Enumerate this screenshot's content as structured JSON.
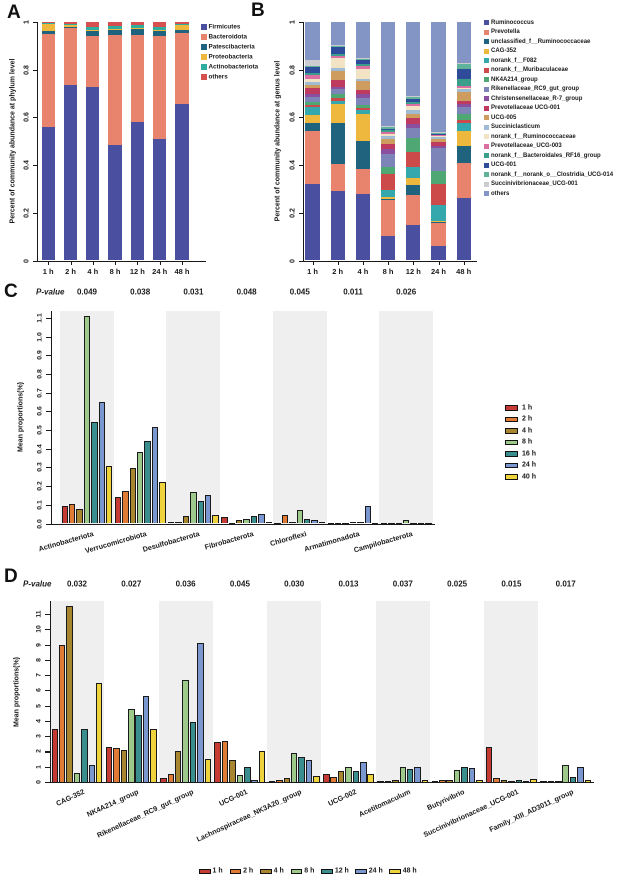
{
  "figure": {
    "panel_a_letter": "A",
    "panel_b_letter": "B",
    "panel_c_letter": "C",
    "panel_d_letter": "D"
  },
  "chart_data": [
    {
      "id": "A",
      "type": "bar",
      "subtype": "stacked-vertical",
      "panel_label": "A",
      "ylabel": "Percent of community abundance at phylum level",
      "categories": [
        "1 h",
        "2 h",
        "4 h",
        "8 h",
        "12 h",
        "24 h",
        "48 h"
      ],
      "ytick_labels": [
        "0",
        "0.2",
        "0.4",
        "0.6",
        "0.8",
        "1"
      ],
      "ytick_values": [
        0,
        0.2,
        0.4,
        0.6,
        0.8,
        1
      ],
      "ylim": [
        0,
        1
      ],
      "legend_position": "right",
      "series": [
        {
          "name": "Firmicutes",
          "color": "#4b4f9f",
          "values": [
            0.56,
            0.735,
            0.725,
            0.485,
            0.58,
            0.51,
            0.655
          ]
        },
        {
          "name": "Bacteroidota",
          "color": "#e8846e",
          "values": [
            0.39,
            0.24,
            0.215,
            0.458,
            0.365,
            0.43,
            0.3
          ]
        },
        {
          "name": "Patescibacteria",
          "color": "#20637e",
          "values": [
            0.012,
            0.005,
            0.022,
            0.022,
            0.025,
            0.022,
            0.012
          ]
        },
        {
          "name": "Proteobacteria",
          "color": "#eeb73e",
          "values": [
            0.028,
            0.007,
            0.003,
            0.003,
            0.003,
            0.003,
            0.02
          ]
        },
        {
          "name": "Actinobacteriota",
          "color": "#2fae9f",
          "values": [
            0.003,
            0.005,
            0.015,
            0.015,
            0.012,
            0.015,
            0.005
          ]
        },
        {
          "name": "others",
          "color": "#d5504e",
          "values": [
            0.007,
            0.008,
            0.02,
            0.017,
            0.015,
            0.02,
            0.008
          ]
        }
      ]
    },
    {
      "id": "B",
      "type": "bar",
      "subtype": "stacked-vertical",
      "panel_label": "B",
      "ylabel": "Percent of community abundance at genus level",
      "categories": [
        "1 h",
        "2 h",
        "4 h",
        "8 h",
        "12 h",
        "24 h",
        "48 h"
      ],
      "ytick_labels": [
        "0",
        "0.2",
        "0.4",
        "0.6",
        "0.8",
        "1"
      ],
      "ytick_values": [
        0,
        0.2,
        0.4,
        0.6,
        0.8,
        1
      ],
      "ylim": [
        0,
        1
      ],
      "legend_position": "right",
      "series": [
        {
          "name": "Ruminococcus",
          "color": "#4b4f9f",
          "values": [
            0.32,
            0.29,
            0.28,
            0.102,
            0.15,
            0.062,
            0.26
          ]
        },
        {
          "name": "Prevotella",
          "color": "#e8846e",
          "values": [
            0.225,
            0.115,
            0.105,
            0.15,
            0.125,
            0.095,
            0.15
          ]
        },
        {
          "name": "unclassified_f__Ruminococcaceae",
          "color": "#20637e",
          "values": [
            0.03,
            0.17,
            0.115,
            0.005,
            0.04,
            0.004,
            0.07
          ]
        },
        {
          "name": "CAG-352",
          "color": "#eeb73e",
          "values": [
            0.037,
            0.08,
            0.115,
            0.008,
            0.03,
            0.006,
            0.065
          ]
        },
        {
          "name": "norank_f__F082",
          "color": "#35a8ad",
          "values": [
            0.03,
            0.015,
            0.015,
            0.03,
            0.048,
            0.065,
            0.03
          ]
        },
        {
          "name": "norank_f__Muribaculaceae",
          "color": "#cc4a4a",
          "values": [
            0.008,
            0.012,
            0.008,
            0.068,
            0.061,
            0.09,
            0.015
          ]
        },
        {
          "name": "NK4A214_group",
          "color": "#4fa873",
          "values": [
            0.014,
            0.015,
            0.015,
            0.03,
            0.061,
            0.055,
            0.025
          ]
        },
        {
          "name": "Rikenellaceae_RC9_gut_group",
          "color": "#7d84b8",
          "values": [
            0.023,
            0.02,
            0.03,
            0.055,
            0.041,
            0.095,
            0.03
          ]
        },
        {
          "name": "Christensenellaceae_R-7_group",
          "color": "#8a4f9e",
          "values": [
            0.01,
            0.01,
            0.015,
            0.018,
            0.015,
            0.008,
            0.01
          ]
        },
        {
          "name": "Prevotellaceae UCG-001",
          "color": "#be3a5f",
          "values": [
            0.028,
            0.028,
            0.015,
            0.022,
            0.025,
            0.018,
            0.012
          ]
        },
        {
          "name": "UCG-005",
          "color": "#ce9c5e",
          "values": [
            0.01,
            0.04,
            0.04,
            0.02,
            0.02,
            0.012,
            0.04
          ]
        },
        {
          "name": "Succiniclasticum",
          "color": "#9fbcd4",
          "values": [
            0.012,
            0.012,
            0.01,
            0.015,
            0.015,
            0.008,
            0.01
          ]
        },
        {
          "name": "norank_f__Ruminococcaceae",
          "color": "#f2e3c4",
          "values": [
            0.015,
            0.04,
            0.04,
            0.006,
            0.015,
            0.004,
            0.008
          ]
        },
        {
          "name": "Prevotellaceae_UCG-003",
          "color": "#dc6fa2",
          "values": [
            0.015,
            0.01,
            0.012,
            0.01,
            0.01,
            0.004,
            0.008
          ]
        },
        {
          "name": "norank_f__Bacteroidales_RF16_group",
          "color": "#3a9e8a",
          "values": [
            0.01,
            0.01,
            0.01,
            0.008,
            0.01,
            0.004,
            0.03
          ]
        },
        {
          "name": "UCG-001",
          "color": "#2f4c9b",
          "values": [
            0.025,
            0.028,
            0.015,
            0.005,
            0.01,
            0.002,
            0.04
          ]
        },
        {
          "name": "norank_f__norank_o__Clostridia_UCG-014",
          "color": "#5fb39a",
          "values": [
            0.005,
            0.005,
            0.005,
            0.008,
            0.01,
            0.003,
            0.02
          ]
        },
        {
          "name": "Succinivibrionaceae_UCG-001",
          "color": "#ccccd0",
          "values": [
            0.022,
            0.005,
            0.005,
            0.005,
            0.005,
            0.005,
            0.005
          ]
        },
        {
          "name": "others",
          "color": "#8395c4",
          "values": [
            0.161,
            0.095,
            0.15,
            0.435,
            0.309,
            0.46,
            0.172
          ]
        }
      ]
    },
    {
      "id": "C",
      "type": "bar",
      "subtype": "grouped-vertical",
      "panel_label": "C",
      "ylabel": "Mean proportions(%)",
      "pvalue_label": "P-value",
      "ytick_labels": [
        "0.0",
        "0.1",
        "0.2",
        "0.3",
        "0.4",
        "0.5",
        "0.6",
        "0.7",
        "0.8",
        "0.9",
        "1.0",
        "1.1"
      ],
      "ytick_values": [
        0,
        0.1,
        0.2,
        0.3,
        0.4,
        0.5,
        0.6,
        0.7,
        0.8,
        0.9,
        1.0,
        1.1
      ],
      "ylim": [
        0,
        1.15
      ],
      "band_color": "#efefef",
      "legend_position": "right",
      "series_labels": [
        "1 h",
        "2 h",
        "4 h",
        "8 h",
        "16 h",
        "24 h",
        "40 h"
      ],
      "series_colors": [
        "#c53a32",
        "#e07b35",
        "#a8862f",
        "#9dc98a",
        "#3a8e8e",
        "#7b97d0",
        "#efd33d"
      ],
      "groups": [
        {
          "name": "Actinobacteriota",
          "pvalue": "0.049",
          "values": [
            0.095,
            0.105,
            0.08,
            1.11,
            0.545,
            0.65,
            0.305
          ]
        },
        {
          "name": "Verrucomicrobiota",
          "pvalue": "0.038",
          "values": [
            0.14,
            0.175,
            0.295,
            0.38,
            0.44,
            0.515,
            0.22
          ]
        },
        {
          "name": "Desulfobacterota",
          "pvalue": "0.031",
          "values": [
            0.01,
            0.01,
            0.04,
            0.17,
            0.12,
            0.155,
            0.045
          ]
        },
        {
          "name": "Fibrobacterota",
          "pvalue": "0.048",
          "values": [
            0.035,
            0.005,
            0.02,
            0.025,
            0.04,
            0.05,
            0.01
          ]
        },
        {
          "name": "Chloroflexi",
          "pvalue": "0.045",
          "values": [
            0.005,
            0.045,
            0.01,
            0.07,
            0.025,
            0.02,
            0.01
          ]
        },
        {
          "name": "Armatimonadota",
          "pvalue": "0.011",
          "values": [
            0.002,
            0.002,
            0.005,
            0.01,
            0.01,
            0.095,
            0.005
          ]
        },
        {
          "name": "Campilobacterota",
          "pvalue": "0.026",
          "values": [
            0.002,
            0.002,
            0.005,
            0.02,
            0.005,
            0.005,
            0.002
          ]
        }
      ]
    },
    {
      "id": "D",
      "type": "bar",
      "subtype": "grouped-vertical",
      "panel_label": "D",
      "ylabel": "Mean proportions(%)",
      "pvalue_label": "P-value",
      "ytick_labels": [
        "0",
        "1",
        "2",
        "3",
        "4",
        "5",
        "6",
        "7",
        "8",
        "9",
        "10",
        "11"
      ],
      "ytick_values": [
        0,
        1,
        2,
        3,
        4,
        5,
        6,
        7,
        8,
        9,
        10,
        11
      ],
      "ylim": [
        0,
        11.85
      ],
      "band_color": "#efefef",
      "legend_position": "bottom",
      "series_labels": [
        "1 h",
        "2 h",
        "4 h",
        "8 h",
        "12 h",
        "24 h",
        "48 h"
      ],
      "series_colors": [
        "#c53a32",
        "#e07b35",
        "#a8862f",
        "#9dc98a",
        "#3a8e8e",
        "#7b97d0",
        "#efd33d"
      ],
      "groups": [
        {
          "name": "CAG-352",
          "pvalue": "0.032",
          "values": [
            3.5,
            9.0,
            11.5,
            0.6,
            3.45,
            1.1,
            6.5
          ]
        },
        {
          "name": "NK4A214_group",
          "pvalue": "0.027",
          "values": [
            2.3,
            2.2,
            2.1,
            4.8,
            4.4,
            5.6,
            3.5
          ]
        },
        {
          "name": "Rikenellaceae_RC9_gut_group",
          "pvalue": "0.036",
          "values": [
            0.25,
            0.5,
            2.0,
            6.7,
            3.9,
            9.1,
            1.5
          ]
        },
        {
          "name": "UCG-001",
          "pvalue": "0.045",
          "values": [
            2.6,
            2.7,
            1.45,
            0.45,
            1.0,
            0.1,
            2.05
          ]
        },
        {
          "name": "Lachnospiraceae_NK3A20_group",
          "pvalue": "0.030",
          "values": [
            0.05,
            0.1,
            0.25,
            1.9,
            1.65,
            1.45,
            0.4
          ]
        },
        {
          "name": "UCG-002",
          "pvalue": "0.013",
          "values": [
            0.5,
            0.35,
            0.75,
            0.95,
            0.7,
            1.3,
            0.55
          ]
        },
        {
          "name": "Acetitomaculum",
          "pvalue": "0.037",
          "values": [
            0.05,
            0.05,
            0.1,
            1.0,
            0.85,
            0.95,
            0.15
          ]
        },
        {
          "name": "Butyrivibrio",
          "pvalue": "0.025",
          "values": [
            0.05,
            0.1,
            0.15,
            0.8,
            0.95,
            0.9,
            0.1
          ]
        },
        {
          "name": "Succinivibrionaceae_UCG-001",
          "pvalue": "0.015",
          "values": [
            2.3,
            0.25,
            0.1,
            0.05,
            0.1,
            0.05,
            0.2
          ]
        },
        {
          "name": "Family_XIII_AD3011_group",
          "pvalue": "0.017",
          "values": [
            0.02,
            0.03,
            0.05,
            1.1,
            0.35,
            0.95,
            0.1
          ]
        }
      ]
    }
  ]
}
